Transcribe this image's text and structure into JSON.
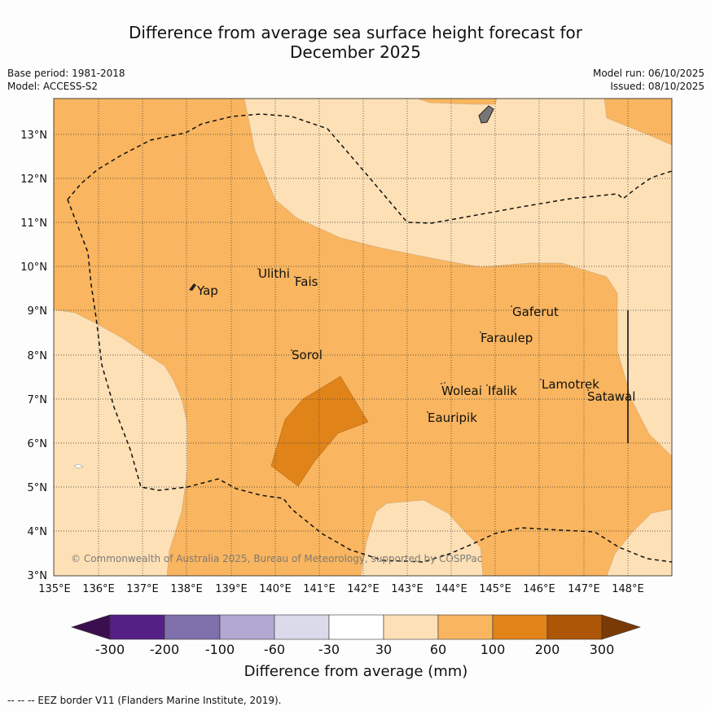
{
  "title": {
    "line1": "Difference from average sea surface height forecast for",
    "line2": "December 2025"
  },
  "info": {
    "base_period": "Base period: 1981-2018",
    "model": "Model: ACCESS-S2",
    "model_run": "Model run: 06/10/2025",
    "issued": "Issued: 08/10/2025"
  },
  "map": {
    "lon_labels": [
      "135°E",
      "136°E",
      "137°E",
      "138°E",
      "139°E",
      "140°E",
      "141°E",
      "142°E",
      "143°E",
      "144°E",
      "145°E",
      "146°E",
      "147°E",
      "148°E"
    ],
    "lat_labels": [
      "13°N",
      "12°N",
      "11°N",
      "10°N",
      "9°N",
      "8°N",
      "7°N",
      "6°N",
      "5°N",
      "4°N",
      "3°N"
    ],
    "places": [
      {
        "name": "Yap"
      },
      {
        "name": "Ulithi"
      },
      {
        "name": "Fais"
      },
      {
        "name": "Sorol"
      },
      {
        "name": "Gaferut"
      },
      {
        "name": "Faraulep"
      },
      {
        "name": "Woleai"
      },
      {
        "name": "Ifalik"
      },
      {
        "name": "Lamotrek"
      },
      {
        "name": "Satawal"
      },
      {
        "name": "Eauripik"
      }
    ],
    "copyright": "© Commonwealth of Australia 2025, Bureau of Meteorology, supported by COSPPac",
    "colors": {
      "c30_60": "#fde0b6",
      "c60_100": "#f9b55f",
      "c100_200": "#e0841a"
    }
  },
  "colorbar": {
    "ticks": [
      "-300",
      "-200",
      "-100",
      "-60",
      "-30",
      "30",
      "60",
      "100",
      "200",
      "300"
    ],
    "colors": [
      "#3b0f4f",
      "#542086",
      "#7f6fab",
      "#b1a9d2",
      "#dadaeb",
      "#ffffff",
      "#fde0b6",
      "#f9b55f",
      "#e0841a",
      "#ad5608",
      "#7a3a06"
    ],
    "label": "Difference from average (mm)"
  },
  "footer": "--  --  -- EEZ border V11 (Flanders Marine Institute, 2019)."
}
